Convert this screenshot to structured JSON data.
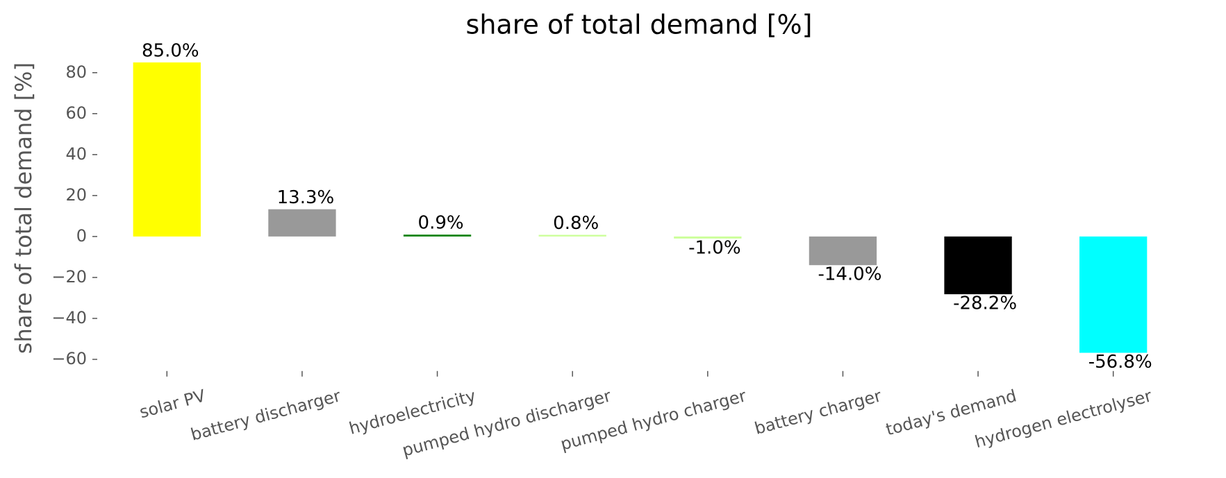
{
  "chart_data": {
    "type": "bar",
    "title": "share of total demand [%]",
    "y_label": "share of total demand [%]",
    "categories": [
      "solar PV",
      "battery discharger",
      "hydroelectricity",
      "pumped hydro discharger",
      "pumped hydro charger",
      "battery charger",
      "today's demand",
      "hydrogen electrolyser"
    ],
    "values": [
      85.0,
      13.3,
      0.9,
      0.8,
      -1.0,
      -14.0,
      -28.2,
      -56.8
    ],
    "value_labels": [
      "85.0%",
      "13.3%",
      "0.9%",
      "0.8%",
      "-1.0%",
      "-14.0%",
      "-28.2%",
      "-56.8%"
    ],
    "colors": [
      "#ffff00",
      "#999999",
      "#008000",
      "#ccff99",
      "#ccff99",
      "#999999",
      "#000000",
      "#00ffff"
    ],
    "ylim": [
      -65.7,
      89.2
    ],
    "yticks": [
      {
        "value": -60,
        "label": "−60"
      },
      {
        "value": -40,
        "label": "−40"
      },
      {
        "value": -20,
        "label": "−20"
      },
      0,
      20,
      40,
      60,
      80
    ],
    "grid": false
  }
}
